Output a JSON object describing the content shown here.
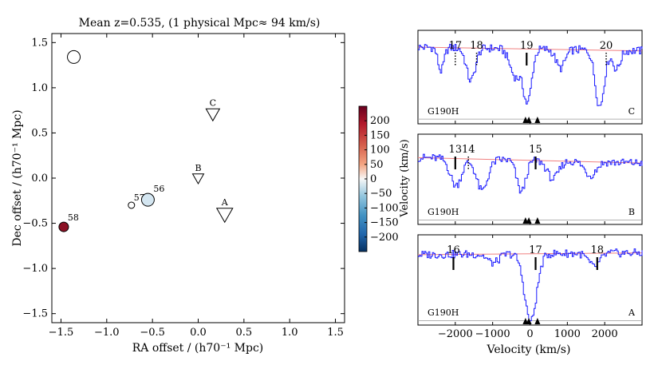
{
  "title": "Mean z=0.535, (1 physical Mpc≈ 94 km/s)",
  "chart_data": [
    {
      "type": "scatter",
      "xlabel": "RA offset / (h70⁻¹ Mpc)",
      "ylabel": "Dec offset / (h70⁻¹ Mpc)",
      "xlim": [
        -1.6,
        1.6
      ],
      "ylim": [
        -1.6,
        1.6
      ],
      "xticks": [
        -1.5,
        -1.0,
        -0.5,
        0.0,
        0.5,
        1.0,
        1.5
      ],
      "yticks": [
        -1.5,
        -1.0,
        -0.5,
        0.0,
        0.5,
        1.0,
        1.5
      ],
      "xtick_labels": [
        "−1.5",
        "−1.0",
        "−0.5",
        "0.0",
        "0.5",
        "1.0",
        "1.5"
      ],
      "ytick_labels": [
        "−1.5",
        "−1.0",
        "−0.5",
        "0.0",
        "0.5",
        "1.0",
        "1.5"
      ],
      "galaxies": [
        {
          "label": "58",
          "x": -1.47,
          "y": -0.54,
          "vel": 230,
          "size": "medium",
          "color": "#8b1024"
        },
        {
          "label": "57",
          "x": -0.73,
          "y": -0.3,
          "vel": 0,
          "size": "small",
          "color": "#ffffff"
        },
        {
          "label": "56",
          "x": -0.55,
          "y": -0.24,
          "vel": -25,
          "size": "large",
          "color": "#d4e6f1"
        },
        {
          "label": "",
          "x": -1.36,
          "y": 1.34,
          "vel": 0,
          "size": "large",
          "color": "#ffffff"
        }
      ],
      "sightlines": [
        {
          "label": "A",
          "x": 0.29,
          "y": -0.4,
          "size": "large"
        },
        {
          "label": "B",
          "x": 0.0,
          "y": 0.0,
          "size": "small"
        },
        {
          "label": "C",
          "x": 0.16,
          "y": 0.71,
          "size": "medium"
        }
      ]
    },
    {
      "type": "colorbar",
      "label": "Velocity (km/s)",
      "range": [
        -250,
        250
      ],
      "ticks": [
        200,
        150,
        100,
        50,
        0,
        -50,
        -100,
        -150,
        -200
      ],
      "tick_labels": [
        "200",
        "150",
        "100",
        "50",
        "0",
        "−50",
        "−100",
        "−150",
        "−200"
      ]
    },
    {
      "type": "line",
      "xlabel": "Velocity (km/s)",
      "xlim": [
        -3000,
        3000
      ],
      "xticks": [
        -2000,
        -1000,
        0,
        1000,
        2000
      ],
      "xtick_labels": [
        "−2000",
        "−1000",
        "0",
        "1000",
        "2000"
      ],
      "panels": [
        {
          "sightline": "C",
          "grating": "G190H",
          "markers": [
            {
              "label": "17",
              "vel": -2000,
              "style": "dotted"
            },
            {
              "label": "18",
              "vel": -1430,
              "style": "dotted"
            },
            {
              "label": "19",
              "vel": -90,
              "style": "solid"
            },
            {
              "label": "20",
              "vel": 2040,
              "style": "dotted"
            }
          ],
          "galaxy_velocities": [
            -120,
            -30,
            200
          ],
          "continuum": [
            0.82,
            0.78
          ],
          "absorptions": [
            {
              "center": -2400,
              "depth": 0.25,
              "width": 80
            },
            {
              "center": -1600,
              "depth": 0.35,
              "width": 120
            },
            {
              "center": -400,
              "depth": 0.3,
              "width": 150
            },
            {
              "center": -80,
              "depth": 0.55,
              "width": 110
            },
            {
              "center": 800,
              "depth": 0.2,
              "width": 120
            },
            {
              "center": 1850,
              "depth": 0.6,
              "width": 120
            },
            {
              "center": 2300,
              "depth": 0.2,
              "width": 100
            }
          ]
        },
        {
          "sightline": "B",
          "grating": "G190H",
          "markers": [
            {
              "label": "13",
              "vel": -2000,
              "style": "solid"
            },
            {
              "label": "14",
              "vel": -1650,
              "style": "dotted"
            },
            {
              "label": "15",
              "vel": 150,
              "style": "solid"
            }
          ],
          "galaxy_velocities": [
            -120,
            -30,
            200
          ],
          "continuum": [
            0.74,
            0.68
          ],
          "absorptions": [
            {
              "center": -2000,
              "depth": 0.3,
              "width": 150
            },
            {
              "center": -1300,
              "depth": 0.35,
              "width": 150
            },
            {
              "center": -250,
              "depth": 0.35,
              "width": 120
            },
            {
              "center": 600,
              "depth": 0.2,
              "width": 150
            },
            {
              "center": 1600,
              "depth": 0.15,
              "width": 150
            }
          ]
        },
        {
          "sightline": "A",
          "grating": "G190H",
          "markers": [
            {
              "label": "16",
              "vel": -2050,
              "style": "solid"
            },
            {
              "label": "17",
              "vel": 150,
              "style": "solid"
            },
            {
              "label": "18",
              "vel": 1800,
              "style": "solid"
            }
          ],
          "galaxy_velocities": [
            -120,
            -30,
            200
          ],
          "continuum": [
            0.78,
            0.8
          ],
          "absorptions": [
            {
              "center": 0,
              "depth": 0.75,
              "width": 160
            },
            {
              "center": -1000,
              "depth": 0.1,
              "width": 150
            },
            {
              "center": 1700,
              "depth": 0.15,
              "width": 150
            }
          ]
        }
      ]
    }
  ]
}
